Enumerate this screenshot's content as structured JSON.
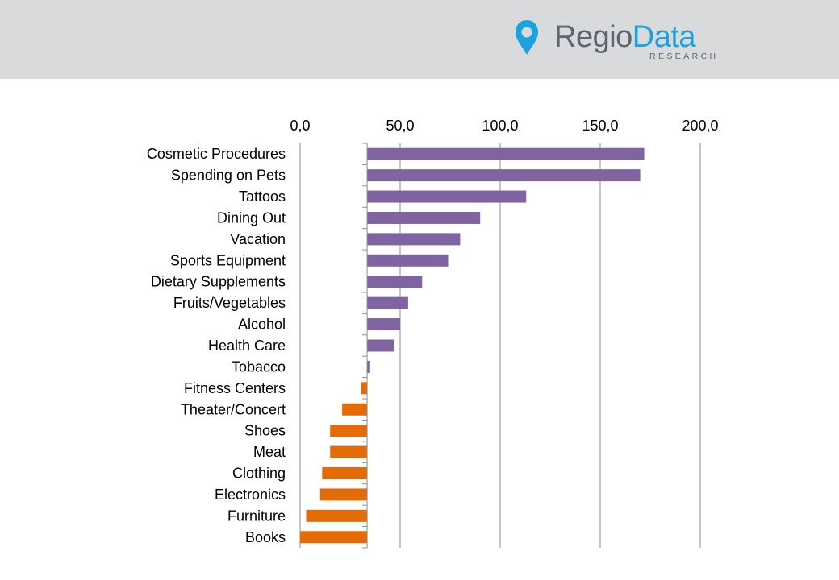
{
  "header": {
    "logo": {
      "icon": "map-pin-icon",
      "word_part1": "Regio",
      "word_part2": "Data",
      "subtitle": "RESEARCH",
      "colors": {
        "gray": "#5d6570",
        "blue": "#1aa3df"
      }
    }
  },
  "chart_data": {
    "type": "bar",
    "orientation": "horizontal",
    "title": "",
    "xlabel": "",
    "ylabel": "",
    "xlim": [
      0,
      200
    ],
    "x_ticks": [
      "0,0",
      "50,0",
      "100,0",
      "150,0",
      "200,0"
    ],
    "x_axis_position": "top",
    "grid": "vertical",
    "legend": "none",
    "baseline": 33.5,
    "categories": [
      "Cosmetic Procedures",
      "Spending on Pets",
      "Tattoos",
      "Dining Out",
      "Vacation",
      "Sports Equipment",
      "Dietary Supplements",
      "Fruits/Vegetables",
      "Alcohol",
      "Health Care",
      "Tobacco",
      "Fitness Centers",
      "Theater/Concert",
      "Shoes",
      "Meat",
      "Clothing",
      "Electronics",
      "Furniture",
      "Books"
    ],
    "values": [
      172,
      170,
      113,
      90,
      80,
      74,
      61,
      54,
      50,
      47,
      35,
      30.5,
      21,
      15,
      15,
      11,
      10,
      3,
      0
    ],
    "colors": {
      "above_baseline": "#8064a2",
      "below_baseline": "#e36c09"
    }
  }
}
